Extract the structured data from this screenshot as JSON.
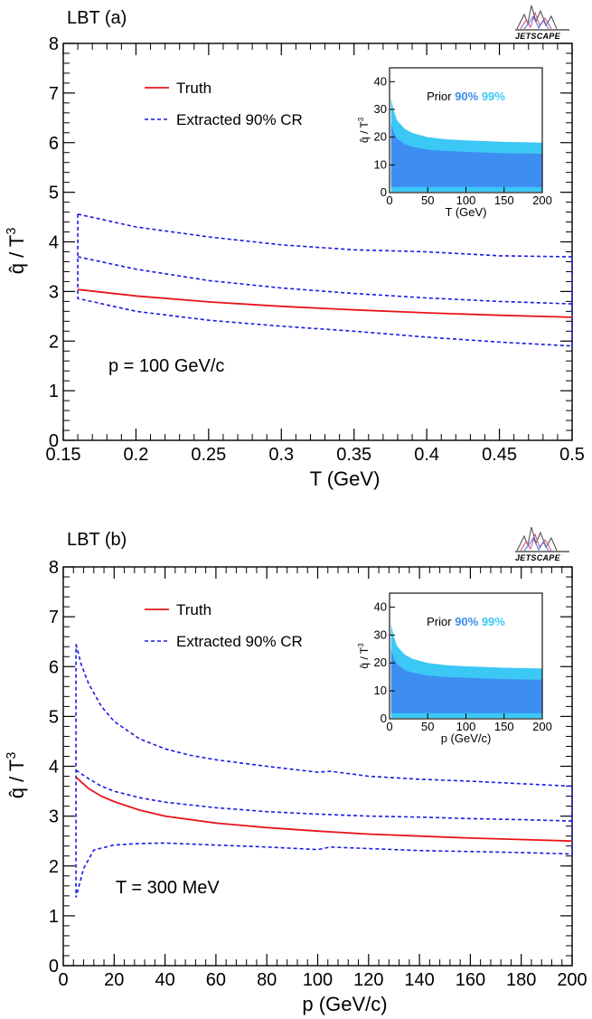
{
  "chart_data": [
    {
      "type": "line",
      "panel_label": "LBT (a)",
      "xlabel": "T (GeV)",
      "ylabel": "q̂ / T³",
      "xlim": [
        0.15,
        0.5
      ],
      "ylim": [
        0,
        8
      ],
      "xticks": [
        "0.15",
        "0.2",
        "0.25",
        "0.3",
        "0.35",
        "0.4",
        "0.45",
        "0.5"
      ],
      "yticks": [
        "0",
        "1",
        "2",
        "3",
        "4",
        "5",
        "6",
        "7",
        "8"
      ],
      "annotation": "p = 100 GeV/c",
      "legend": {
        "position": "top-left",
        "entries": [
          "Truth",
          "Extracted 90% CR"
        ]
      },
      "logo": "JETSCAPE",
      "series": [
        {
          "name": "Truth",
          "style": "solid",
          "color": "#e8141c",
          "x": [
            0.16,
            0.2,
            0.25,
            0.3,
            0.35,
            0.4,
            0.45,
            0.5
          ],
          "y": [
            3.04,
            2.91,
            2.79,
            2.7,
            2.63,
            2.57,
            2.52,
            2.48
          ]
        },
        {
          "name": "Extracted 90% CR",
          "style": "dashed",
          "color": "#1a1ae6",
          "role": "upper-outer",
          "x": [
            0.16,
            0.2,
            0.25,
            0.3,
            0.35,
            0.4,
            0.45,
            0.5
          ],
          "y": [
            4.56,
            4.3,
            4.1,
            3.94,
            3.84,
            3.8,
            3.72,
            3.7
          ]
        },
        {
          "name": "Extracted 90% CR",
          "style": "dashed",
          "color": "#1a1ae6",
          "role": "upper-inner",
          "x": [
            0.16,
            0.2,
            0.25,
            0.3,
            0.35,
            0.4,
            0.45,
            0.5
          ],
          "y": [
            3.7,
            3.45,
            3.22,
            3.07,
            2.96,
            2.87,
            2.8,
            2.75
          ]
        },
        {
          "name": "Extracted 90% CR",
          "style": "dashed",
          "color": "#1a1ae6",
          "role": "lower",
          "x": [
            0.16,
            0.2,
            0.25,
            0.3,
            0.35,
            0.4,
            0.45,
            0.5
          ],
          "y": [
            2.86,
            2.6,
            2.42,
            2.3,
            2.2,
            2.08,
            1.98,
            1.9
          ]
        }
      ],
      "inset": {
        "type": "area",
        "xlabel": "T (GeV)",
        "ylabel": "q̂ / T³",
        "xlim": [
          0,
          200
        ],
        "ylim": [
          0,
          45
        ],
        "xticks": [
          "0",
          "50",
          "100",
          "150",
          "200"
        ],
        "yticks": [
          "0",
          "10",
          "20",
          "30",
          "40"
        ],
        "legend_prefix": "Prior",
        "legend_90": "90%",
        "legend_99": "99%",
        "color_90": "#3d8ef0",
        "color_99": "#3cc8f5",
        "x": [
          2,
          5,
          10,
          20,
          30,
          50,
          75,
          100,
          150,
          200
        ],
        "upper_99": [
          34,
          30,
          26,
          23,
          21.5,
          20,
          19.2,
          18.8,
          18.3,
          18
        ],
        "upper_90": [
          25,
          22,
          19.5,
          17.5,
          16.5,
          15.5,
          15,
          14.7,
          14.2,
          14
        ],
        "lower_90": [
          2,
          2,
          2,
          2,
          2,
          2,
          2,
          2,
          2,
          2
        ],
        "lower_99": [
          0.3,
          0.3,
          0.3,
          0.3,
          0.3,
          0.3,
          0.3,
          0.3,
          0.3,
          0.3
        ]
      }
    },
    {
      "type": "line",
      "panel_label": "LBT (b)",
      "xlabel": "p (GeV/c)",
      "ylabel": "q̂ / T³",
      "xlim": [
        0,
        200
      ],
      "ylim": [
        0,
        8
      ],
      "xticks": [
        "0",
        "20",
        "40",
        "60",
        "80",
        "100",
        "120",
        "140",
        "160",
        "180",
        "200"
      ],
      "yticks": [
        "0",
        "1",
        "2",
        "3",
        "4",
        "5",
        "6",
        "7",
        "8"
      ],
      "annotation": "T = 300 MeV",
      "legend": {
        "position": "top-left",
        "entries": [
          "Truth",
          "Extracted 90% CR"
        ]
      },
      "logo": "JETSCAPE",
      "series": [
        {
          "name": "Truth",
          "style": "solid",
          "color": "#e8141c",
          "x": [
            5,
            10,
            15,
            20,
            30,
            40,
            60,
            80,
            100,
            120,
            140,
            160,
            180,
            200
          ],
          "y": [
            3.78,
            3.55,
            3.4,
            3.29,
            3.12,
            3.0,
            2.86,
            2.77,
            2.7,
            2.64,
            2.6,
            2.56,
            2.53,
            2.5
          ]
        },
        {
          "name": "Extracted 90% CR",
          "style": "dashed",
          "color": "#1a1ae6",
          "role": "upper-outer",
          "x": [
            5,
            7,
            10,
            15,
            20,
            30,
            40,
            50,
            60,
            80,
            100,
            105,
            120,
            140,
            160,
            180,
            200
          ],
          "y": [
            6.45,
            6.05,
            5.65,
            5.2,
            4.9,
            4.55,
            4.35,
            4.22,
            4.13,
            4.0,
            3.88,
            3.9,
            3.8,
            3.74,
            3.7,
            3.65,
            3.6
          ]
        },
        {
          "name": "Extracted 90% CR",
          "style": "dashed",
          "color": "#1a1ae6",
          "role": "upper-inner",
          "x": [
            5,
            10,
            15,
            20,
            30,
            40,
            60,
            80,
            100,
            120,
            140,
            160,
            180,
            200
          ],
          "y": [
            3.92,
            3.75,
            3.6,
            3.5,
            3.37,
            3.28,
            3.17,
            3.09,
            3.04,
            3.0,
            2.98,
            2.95,
            2.93,
            2.9
          ]
        },
        {
          "name": "Extracted 90% CR",
          "style": "dashed",
          "color": "#1a1ae6",
          "role": "lower",
          "x": [
            5,
            8,
            12,
            20,
            30,
            40,
            60,
            80,
            100,
            105,
            120,
            140,
            160,
            180,
            200
          ],
          "y": [
            1.37,
            1.95,
            2.32,
            2.42,
            2.45,
            2.46,
            2.42,
            2.38,
            2.33,
            2.38,
            2.35,
            2.31,
            2.29,
            2.27,
            2.24
          ]
        }
      ],
      "inset": {
        "type": "area",
        "xlabel": "p (GeV/c)",
        "ylabel": "q̂ / T³",
        "xlim": [
          0,
          200
        ],
        "ylim": [
          0,
          45
        ],
        "xticks": [
          "0",
          "50",
          "100",
          "150",
          "200"
        ],
        "yticks": [
          "0",
          "10",
          "20",
          "30",
          "40"
        ],
        "legend_prefix": "Prior",
        "legend_90": "90%",
        "legend_99": "99%",
        "color_90": "#3d8ef0",
        "color_99": "#3cc8f5",
        "x": [
          2,
          5,
          10,
          20,
          30,
          50,
          75,
          100,
          150,
          200
        ],
        "upper_99": [
          34,
          30,
          26,
          23,
          21.5,
          20,
          19.2,
          18.8,
          18.3,
          18
        ],
        "upper_90": [
          25,
          22,
          19.5,
          17.5,
          16.5,
          15.5,
          15,
          14.7,
          14.2,
          14
        ],
        "lower_90": [
          2,
          2,
          2,
          2,
          2,
          2,
          2,
          2,
          2,
          2
        ],
        "lower_99": [
          0.3,
          0.3,
          0.3,
          0.3,
          0.3,
          0.3,
          0.3,
          0.3,
          0.3,
          0.3
        ]
      }
    }
  ]
}
